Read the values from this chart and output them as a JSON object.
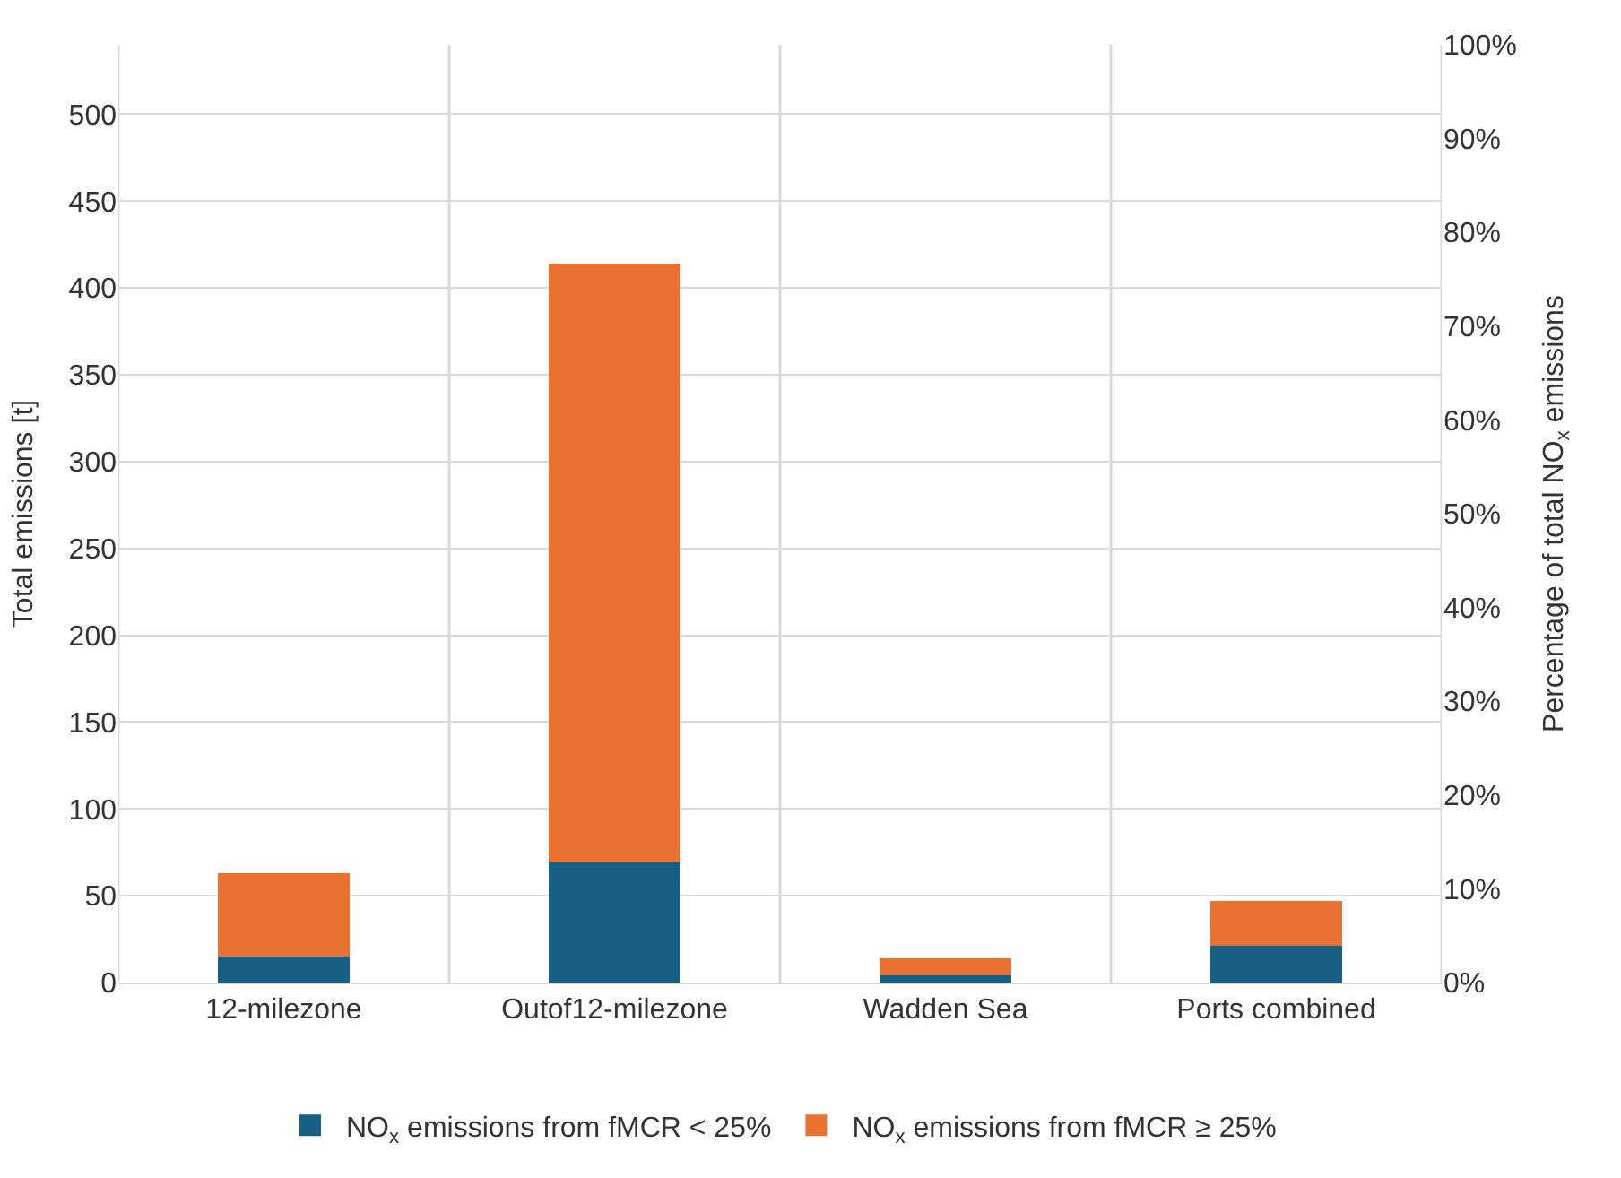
{
  "chart_data": {
    "type": "bar",
    "stacked": true,
    "categories": [
      "12-milezone",
      "Outof12-milezone",
      "Wadden Sea",
      "Ports combined"
    ],
    "series": [
      {
        "name": "NO$_{x}$ emissions from fMCR < 25%",
        "color": "#176084",
        "values": [
          15,
          69,
          4,
          21
        ]
      },
      {
        "name": "NO$_{x}$ emissions from fMCR ≥ 25%",
        "color": "#e97132",
        "values": [
          48,
          345,
          10,
          26
        ]
      }
    ],
    "ylabel": "Total emissions [t]",
    "y2label": "Percentage of total NO$_{x}$ emissions",
    "ylim": [
      0,
      540
    ],
    "yticks": [
      0,
      50,
      100,
      150,
      200,
      250,
      300,
      350,
      400,
      450,
      500
    ],
    "y2lim": [
      0,
      100
    ],
    "y2ticks": [
      {
        "value": 0,
        "label": "0%"
      },
      {
        "value": 10,
        "label": "10%"
      },
      {
        "value": 20,
        "label": "20%"
      },
      {
        "value": 30,
        "label": "30%"
      },
      {
        "value": 40,
        "label": "40%"
      },
      {
        "value": 50,
        "label": "50%"
      },
      {
        "value": 60,
        "label": "60%"
      },
      {
        "value": 70,
        "label": "70%"
      },
      {
        "value": 80,
        "label": "80%"
      },
      {
        "value": 90,
        "label": "90%"
      },
      {
        "value": 100,
        "label": "100%"
      }
    ],
    "grid": true,
    "legend": "bottom"
  }
}
